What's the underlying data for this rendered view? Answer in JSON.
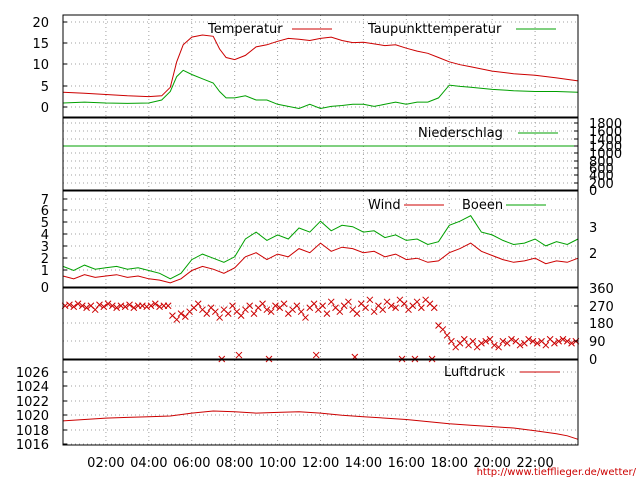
{
  "footer_url": "http://www.tiefflieger.de/wetter/",
  "time_ticks": [
    "02:00",
    "04:00",
    "06:00",
    "08:00",
    "10:00",
    "12:00",
    "14:00",
    "16:00",
    "18:00",
    "20:00",
    "22:00"
  ],
  "colors": {
    "red": "#cc0000",
    "green": "#00a000"
  },
  "chart_data": [
    {
      "type": "line",
      "title": "",
      "ylim": [
        -3,
        21
      ],
      "y_ticks": [
        "20",
        "15",
        "10",
        "5",
        "0"
      ],
      "x_unit": "hour of day",
      "xlim": [
        0,
        24
      ],
      "series": [
        {
          "name": "Temperatur",
          "color": "#cc0000",
          "x": [
            0,
            1,
            2,
            3,
            4,
            4.6,
            5.0,
            5.3,
            5.6,
            6.0,
            6.5,
            7.0,
            7.3,
            7.6,
            8.0,
            8.5,
            9.0,
            9.5,
            10.0,
            10.5,
            11.0,
            11.5,
            12.0,
            12.5,
            13.0,
            13.5,
            14.0,
            14.5,
            15.0,
            15.5,
            16.0,
            16.5,
            17.0,
            17.5,
            18.0,
            18.5,
            19.0,
            20.0,
            21.0,
            22.0,
            23.0,
            24.0
          ],
          "values": [
            2.8,
            2.6,
            2.3,
            2.0,
            1.8,
            2.0,
            4.0,
            10.0,
            14.0,
            15.8,
            16.3,
            16.0,
            13.0,
            11.0,
            10.5,
            11.5,
            13.5,
            14.0,
            14.8,
            15.5,
            15.3,
            15.0,
            15.5,
            15.8,
            15.0,
            14.5,
            14.6,
            14.2,
            13.8,
            14.0,
            13.2,
            12.5,
            12.0,
            11.0,
            10.0,
            9.3,
            8.8,
            7.8,
            7.2,
            6.8,
            6.2,
            5.5
          ]
        },
        {
          "name": "Taupunkttemperatur",
          "color": "#00a000",
          "x": [
            0,
            1,
            2,
            3,
            4,
            4.6,
            5.0,
            5.3,
            5.6,
            6.0,
            6.5,
            7.0,
            7.3,
            7.6,
            8.0,
            8.5,
            9.0,
            9.5,
            10.0,
            10.5,
            11.0,
            11.5,
            12.0,
            12.5,
            13.0,
            13.5,
            14.0,
            14.5,
            15.0,
            15.5,
            16.0,
            16.5,
            17.0,
            17.5,
            18.0,
            18.5,
            19.0,
            20.0,
            21.0,
            22.0,
            23.0,
            24.0
          ],
          "values": [
            0.3,
            0.5,
            0.3,
            0.2,
            0.3,
            1.0,
            3.0,
            6.5,
            8.0,
            7.0,
            6.0,
            5.0,
            3.0,
            1.5,
            1.5,
            2.0,
            1.0,
            1.0,
            0.0,
            -0.5,
            -1.0,
            0.0,
            -1.0,
            -0.5,
            -0.3,
            0.0,
            0.0,
            -0.5,
            0.0,
            0.5,
            0.0,
            0.5,
            0.5,
            1.5,
            4.5,
            4.2,
            4.0,
            3.5,
            3.2,
            3.0,
            3.0,
            2.8
          ]
        }
      ]
    },
    {
      "type": "line",
      "title": "",
      "ylim": [
        0,
        1800
      ],
      "y_ticks": [
        "1800",
        "1600",
        "1400",
        "1200",
        "1000",
        "800",
        "600",
        "400",
        "200",
        "0"
      ],
      "y_axis_side": "right",
      "series": [
        {
          "name": "Niederschlag",
          "color": "#00a000",
          "x": [
            0,
            24
          ],
          "values": [
            1100,
            1100
          ]
        }
      ]
    },
    {
      "type": "line",
      "title": "",
      "ylim": [
        0,
        7
      ],
      "y_ticks": [
        "7",
        "6",
        "5",
        "4",
        "3",
        "2",
        "1",
        "0"
      ],
      "y_ticks_right": [
        "3",
        "2"
      ],
      "series": [
        {
          "name": "Wind",
          "color": "#cc0000",
          "x": [
            0,
            0.5,
            1,
            1.5,
            2,
            2.5,
            3,
            3.5,
            4,
            4.5,
            5,
            5.5,
            6,
            6.5,
            7,
            7.5,
            8,
            8.5,
            9,
            9.5,
            10,
            10.5,
            11,
            11.5,
            12,
            12.5,
            13,
            13.5,
            14,
            14.5,
            15,
            15.5,
            16,
            16.5,
            17,
            17.5,
            18,
            18.5,
            19,
            19.5,
            20,
            20.5,
            21,
            21.5,
            22,
            22.5,
            23,
            23.5,
            24
          ],
          "values": [
            0.8,
            0.6,
            0.9,
            0.7,
            0.8,
            0.9,
            0.7,
            0.8,
            0.6,
            0.5,
            0.3,
            0.6,
            1.2,
            1.5,
            1.3,
            1.0,
            1.4,
            2.2,
            2.5,
            2.0,
            2.4,
            2.2,
            2.8,
            2.5,
            3.2,
            2.6,
            2.9,
            2.8,
            2.5,
            2.6,
            2.2,
            2.4,
            2.0,
            2.1,
            1.8,
            1.9,
            2.5,
            2.8,
            3.2,
            2.6,
            2.3,
            2.0,
            1.8,
            1.9,
            2.1,
            1.7,
            1.9,
            1.8,
            2.1
          ]
        },
        {
          "name": "Boeen",
          "color": "#00a000",
          "x": [
            0,
            0.5,
            1,
            1.5,
            2,
            2.5,
            3,
            3.5,
            4,
            4.5,
            5,
            5.5,
            6,
            6.5,
            7,
            7.5,
            8,
            8.5,
            9,
            9.5,
            10,
            10.5,
            11,
            11.5,
            12,
            12.5,
            13,
            13.5,
            14,
            14.5,
            15,
            15.5,
            16,
            16.5,
            17,
            17.5,
            18,
            18.5,
            19,
            19.5,
            20,
            20.5,
            21,
            21.5,
            22,
            22.5,
            23,
            23.5,
            24
          ],
          "values": [
            1.5,
            1.2,
            1.6,
            1.3,
            1.4,
            1.5,
            1.3,
            1.4,
            1.2,
            1.0,
            0.6,
            1.0,
            2.0,
            2.4,
            2.1,
            1.8,
            2.2,
            3.5,
            4.0,
            3.4,
            3.8,
            3.5,
            4.3,
            4.0,
            4.8,
            4.1,
            4.5,
            4.4,
            4.0,
            4.1,
            3.6,
            3.8,
            3.4,
            3.5,
            3.1,
            3.3,
            4.5,
            4.8,
            5.2,
            4.0,
            3.8,
            3.4,
            3.1,
            3.2,
            3.5,
            3.0,
            3.3,
            3.1,
            3.5
          ]
        }
      ]
    },
    {
      "type": "scatter",
      "title": "",
      "ylim": [
        0,
        360
      ],
      "y_ticks": [
        "360",
        "270",
        "180",
        "90",
        "0"
      ],
      "y_axis_side": "right",
      "series": [
        {
          "name": "",
          "marker": "x",
          "color": "#cc0000",
          "x": [
            0.1,
            0.3,
            0.5,
            0.7,
            0.9,
            1.1,
            1.3,
            1.5,
            1.7,
            1.9,
            2.1,
            2.3,
            2.5,
            2.7,
            2.9,
            3.1,
            3.3,
            3.5,
            3.7,
            3.9,
            4.1,
            4.3,
            4.5,
            4.7,
            4.9,
            5.1,
            5.3,
            5.5,
            5.7,
            5.9,
            6.1,
            6.3,
            6.5,
            6.7,
            6.9,
            7.1,
            7.3,
            7.5,
            7.7,
            7.9,
            8.1,
            8.3,
            8.5,
            8.7,
            8.9,
            9.1,
            9.3,
            9.5,
            9.7,
            9.9,
            10.1,
            10.3,
            10.5,
            10.7,
            10.9,
            11.1,
            11.3,
            11.5,
            11.7,
            11.9,
            12.1,
            12.3,
            12.5,
            12.7,
            12.9,
            13.1,
            13.3,
            13.5,
            13.7,
            13.9,
            14.1,
            14.3,
            14.5,
            14.7,
            14.9,
            15.1,
            15.3,
            15.5,
            15.7,
            15.9,
            16.1,
            16.3,
            16.5,
            16.7,
            16.9,
            17.1,
            17.3,
            17.5,
            17.7,
            17.9,
            18.1,
            18.3,
            18.5,
            18.7,
            18.9,
            19.1,
            19.3,
            19.5,
            19.7,
            19.9,
            20.1,
            20.3,
            20.5,
            20.7,
            20.9,
            21.1,
            21.3,
            21.5,
            21.7,
            21.9,
            22.1,
            22.3,
            22.5,
            22.7,
            22.9,
            23.1,
            23.3,
            23.5,
            23.7,
            23.9,
            7.4,
            8.2,
            9.6,
            11.8,
            13.6,
            15.8,
            16.4,
            17.2
          ],
          "values": [
            270,
            275,
            265,
            280,
            270,
            260,
            270,
            250,
            275,
            265,
            280,
            270,
            260,
            270,
            265,
            275,
            260,
            270,
            270,
            265,
            270,
            280,
            265,
            270,
            270,
            220,
            200,
            230,
            215,
            240,
            260,
            280,
            250,
            230,
            260,
            240,
            210,
            250,
            230,
            270,
            240,
            220,
            250,
            270,
            230,
            260,
            280,
            250,
            240,
            270,
            260,
            280,
            230,
            250,
            270,
            240,
            210,
            260,
            280,
            250,
            270,
            230,
            290,
            260,
            240,
            270,
            290,
            250,
            230,
            280,
            260,
            300,
            240,
            270,
            250,
            290,
            270,
            260,
            300,
            280,
            250,
            270,
            290,
            260,
            300,
            280,
            260,
            170,
            150,
            120,
            90,
            60,
            80,
            100,
            70,
            90,
            60,
            80,
            90,
            100,
            70,
            60,
            90,
            80,
            100,
            90,
            70,
            80,
            100,
            90,
            80,
            90,
            70,
            100,
            80,
            90,
            100,
            90,
            80,
            90,
            0,
            20,
            0,
            20,
            10,
            0,
            0,
            0
          ]
        }
      ]
    },
    {
      "type": "line",
      "title": "",
      "ylim": [
        1016,
        1028
      ],
      "y_ticks": [
        "1026",
        "1024",
        "1022",
        "1020",
        "1018",
        "1016"
      ],
      "series": [
        {
          "name": "Luftdruck",
          "color": "#cc0000",
          "x": [
            0,
            1,
            2,
            3,
            4,
            5,
            6,
            7,
            8,
            9,
            10,
            11,
            12,
            13,
            14,
            15,
            16,
            17,
            18,
            19,
            20,
            21,
            22,
            23,
            23.5,
            24
          ],
          "values": [
            1019.4,
            1019.6,
            1019.8,
            1019.9,
            1020.0,
            1020.1,
            1020.5,
            1020.8,
            1020.7,
            1020.5,
            1020.6,
            1020.7,
            1020.5,
            1020.2,
            1020.0,
            1019.8,
            1019.6,
            1019.3,
            1019.0,
            1018.8,
            1018.6,
            1018.4,
            1018.0,
            1017.6,
            1017.3,
            1016.8
          ]
        }
      ]
    }
  ]
}
